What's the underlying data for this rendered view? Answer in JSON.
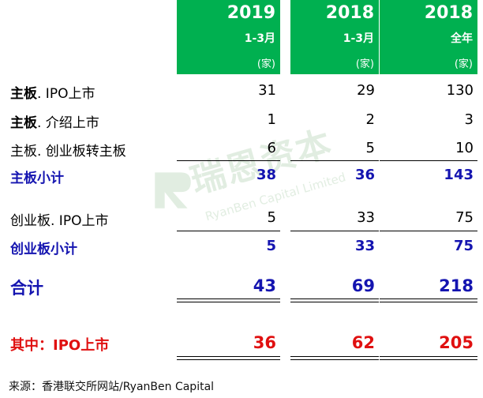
{
  "headers": [
    {
      "year": "2019",
      "period": "1-3月",
      "unit": "(家)"
    },
    {
      "year": "2018",
      "period": "1-3月",
      "unit": "(家)"
    },
    {
      "year": "2018",
      "period": "全年",
      "unit": "(家)"
    }
  ],
  "rows": [
    {
      "label_bold": "主板",
      "label_rest": ". IPO上市",
      "values": [
        "31",
        "29",
        "130"
      ]
    },
    {
      "label_bold": "主板",
      "label_rest": ". 介绍上市",
      "values": [
        "1",
        "2",
        "3"
      ]
    },
    {
      "label": "主板. 创业板转主板",
      "values": [
        "6",
        "5",
        "10"
      ]
    },
    {
      "label": "主板小计",
      "values": [
        "38",
        "36",
        "143"
      ]
    },
    {
      "label": "创业板. IPO上市",
      "values": [
        "5",
        "33",
        "75"
      ]
    },
    {
      "label": "创业板小计",
      "values": [
        "5",
        "33",
        "75"
      ]
    },
    {
      "label": "合计",
      "values": [
        "43",
        "69",
        "218"
      ]
    },
    {
      "label": "其中：IPO上市",
      "values": [
        "36",
        "62",
        "205"
      ]
    }
  ],
  "watermark": {
    "chinese": "瑞恩资本",
    "english": "RyanBen Capital Limited"
  },
  "source": "来源：香港联交所网站/RyanBen Capital",
  "colors": {
    "header_green": "#00b050",
    "subtotal_blue": "#1414b0",
    "highlight_red": "#e01010"
  }
}
